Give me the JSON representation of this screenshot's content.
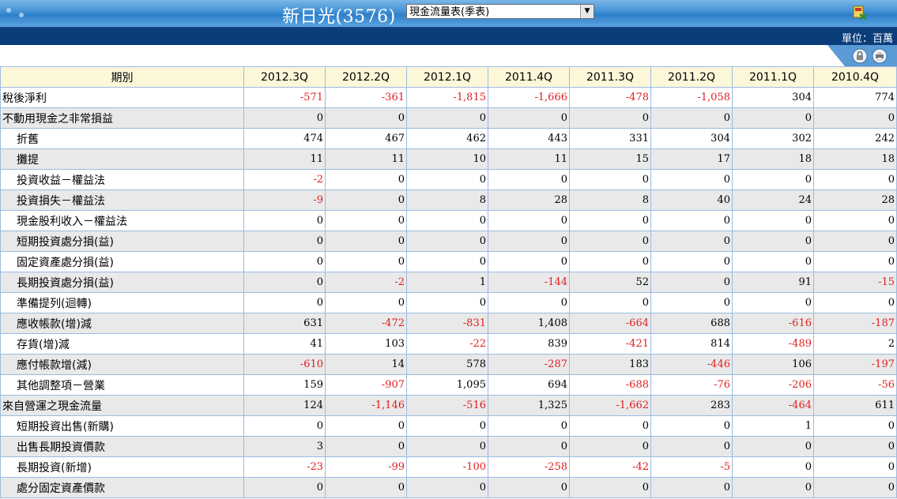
{
  "header": {
    "title": "新日光(3576)",
    "select_value": "現金流量表(季表)",
    "unit": "單位：百萬"
  },
  "table": {
    "period_header": "期別",
    "columns": [
      "2012.3Q",
      "2012.2Q",
      "2012.1Q",
      "2011.4Q",
      "2011.3Q",
      "2011.2Q",
      "2011.1Q",
      "2010.4Q"
    ],
    "rows": [
      {
        "label": "稅後淨利",
        "indent": false,
        "values": [
          "-571",
          "-361",
          "-1,815",
          "-1,666",
          "-478",
          "-1,058",
          "304",
          "774"
        ]
      },
      {
        "label": "不動用現金之非常損益",
        "indent": false,
        "values": [
          "0",
          "0",
          "0",
          "0",
          "0",
          "0",
          "0",
          "0"
        ]
      },
      {
        "label": "折舊",
        "indent": true,
        "values": [
          "474",
          "467",
          "462",
          "443",
          "331",
          "304",
          "302",
          "242"
        ]
      },
      {
        "label": "攤提",
        "indent": true,
        "values": [
          "11",
          "11",
          "10",
          "11",
          "15",
          "17",
          "18",
          "18"
        ]
      },
      {
        "label": "投資收益－權益法",
        "indent": true,
        "values": [
          "-2",
          "0",
          "0",
          "0",
          "0",
          "0",
          "0",
          "0"
        ]
      },
      {
        "label": "投資損失－權益法",
        "indent": true,
        "values": [
          "-9",
          "0",
          "8",
          "28",
          "8",
          "40",
          "24",
          "28"
        ]
      },
      {
        "label": "現金股利收入－權益法",
        "indent": true,
        "values": [
          "0",
          "0",
          "0",
          "0",
          "0",
          "0",
          "0",
          "0"
        ]
      },
      {
        "label": "短期投資處分損(益)",
        "indent": true,
        "values": [
          "0",
          "0",
          "0",
          "0",
          "0",
          "0",
          "0",
          "0"
        ]
      },
      {
        "label": "固定資產處分損(益)",
        "indent": true,
        "values": [
          "0",
          "0",
          "0",
          "0",
          "0",
          "0",
          "0",
          "0"
        ]
      },
      {
        "label": "長期投資處分損(益)",
        "indent": true,
        "values": [
          "0",
          "-2",
          "1",
          "-144",
          "52",
          "0",
          "91",
          "-15"
        ]
      },
      {
        "label": "準備提列(迴轉)",
        "indent": true,
        "values": [
          "0",
          "0",
          "0",
          "0",
          "0",
          "0",
          "0",
          "0"
        ]
      },
      {
        "label": "應收帳款(增)減",
        "indent": true,
        "values": [
          "631",
          "-472",
          "-831",
          "1,408",
          "-664",
          "688",
          "-616",
          "-187"
        ]
      },
      {
        "label": "存貨(增)減",
        "indent": true,
        "values": [
          "41",
          "103",
          "-22",
          "839",
          "-421",
          "814",
          "-489",
          "2"
        ]
      },
      {
        "label": "應付帳款增(減)",
        "indent": true,
        "values": [
          "-610",
          "14",
          "578",
          "-287",
          "183",
          "-446",
          "106",
          "-197"
        ]
      },
      {
        "label": "其他調整項－營業",
        "indent": true,
        "values": [
          "159",
          "-907",
          "1,095",
          "694",
          "-688",
          "-76",
          "-206",
          "-56"
        ]
      },
      {
        "label": "來自營運之現金流量",
        "indent": false,
        "values": [
          "124",
          "-1,146",
          "-516",
          "1,325",
          "-1,662",
          "283",
          "-464",
          "611"
        ]
      },
      {
        "label": "短期投資出售(新購)",
        "indent": true,
        "values": [
          "0",
          "0",
          "0",
          "0",
          "0",
          "0",
          "1",
          "0"
        ]
      },
      {
        "label": "出售長期投資價款",
        "indent": true,
        "values": [
          "3",
          "0",
          "0",
          "0",
          "0",
          "0",
          "0",
          "0"
        ]
      },
      {
        "label": "長期投資(新增)",
        "indent": true,
        "values": [
          "-23",
          "-99",
          "-100",
          "-258",
          "-42",
          "-5",
          "0",
          "0"
        ]
      },
      {
        "label": "處分固定資產價款",
        "indent": true,
        "values": [
          "0",
          "0",
          "0",
          "0",
          "0",
          "0",
          "0",
          "0"
        ]
      }
    ]
  },
  "colors": {
    "negative": "#e02020",
    "header_bg": "#fdf7d9",
    "alt_row": "#e9e9e9",
    "navy": "#0b3d7a"
  }
}
